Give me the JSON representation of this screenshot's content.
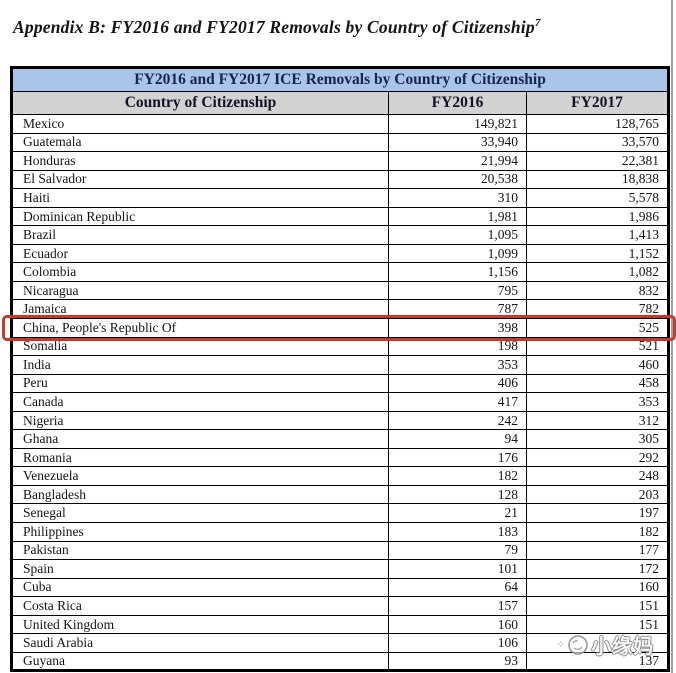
{
  "page": {
    "title": "Appendix B: FY2016 and FY2017 Removals by Country of Citizenship",
    "title_footnote": "7"
  },
  "table": {
    "caption": "FY2016 and FY2017 ICE Removals by Country of Citizenship",
    "columns": [
      "Country of Citizenship",
      "FY2016",
      "FY2017"
    ],
    "caption_bg": "#a9c6e8",
    "header_bg": "#d2d2d2",
    "rows": [
      {
        "country": "Mexico",
        "fy2016": "149,821",
        "fy2017": "128,765"
      },
      {
        "country": "Guatemala",
        "fy2016": "33,940",
        "fy2017": "33,570"
      },
      {
        "country": "Honduras",
        "fy2016": "21,994",
        "fy2017": "22,381"
      },
      {
        "country": "El Salvador",
        "fy2016": "20,538",
        "fy2017": "18,838"
      },
      {
        "country": "Haiti",
        "fy2016": "310",
        "fy2017": "5,578"
      },
      {
        "country": "Dominican Republic",
        "fy2016": "1,981",
        "fy2017": "1,986"
      },
      {
        "country": "Brazil",
        "fy2016": "1,095",
        "fy2017": "1,413"
      },
      {
        "country": "Ecuador",
        "fy2016": "1,099",
        "fy2017": "1,152"
      },
      {
        "country": "Colombia",
        "fy2016": "1,156",
        "fy2017": "1,082"
      },
      {
        "country": "Nicaragua",
        "fy2016": "795",
        "fy2017": "832"
      },
      {
        "country": "Jamaica",
        "fy2016": "787",
        "fy2017": "782"
      },
      {
        "country": "China, People's Republic Of",
        "fy2016": "398",
        "fy2017": "525"
      },
      {
        "country": "Somalia",
        "fy2016": "198",
        "fy2017": "521"
      },
      {
        "country": "India",
        "fy2016": "353",
        "fy2017": "460"
      },
      {
        "country": "Peru",
        "fy2016": "406",
        "fy2017": "458"
      },
      {
        "country": "Canada",
        "fy2016": "417",
        "fy2017": "353"
      },
      {
        "country": "Nigeria",
        "fy2016": "242",
        "fy2017": "312"
      },
      {
        "country": "Ghana",
        "fy2016": "94",
        "fy2017": "305"
      },
      {
        "country": "Romania",
        "fy2016": "176",
        "fy2017": "292"
      },
      {
        "country": "Venezuela",
        "fy2016": "182",
        "fy2017": "248"
      },
      {
        "country": "Bangladesh",
        "fy2016": "128",
        "fy2017": "203"
      },
      {
        "country": "Senegal",
        "fy2016": "21",
        "fy2017": "197"
      },
      {
        "country": "Philippines",
        "fy2016": "183",
        "fy2017": "182"
      },
      {
        "country": "Pakistan",
        "fy2016": "79",
        "fy2017": "177"
      },
      {
        "country": "Spain",
        "fy2016": "101",
        "fy2017": "172"
      },
      {
        "country": "Cuba",
        "fy2016": "64",
        "fy2017": "160"
      },
      {
        "country": "Costa Rica",
        "fy2016": "157",
        "fy2017": "151"
      },
      {
        "country": "United Kingdom",
        "fy2016": "160",
        "fy2017": "151"
      },
      {
        "country": "Saudi Arabia",
        "fy2016": "106",
        "fy2017": ""
      },
      {
        "country": "Guyana",
        "fy2016": "93",
        "fy2017": "137"
      }
    ],
    "highlight": {
      "row_index": 11,
      "row_label": "China, People's Republic Of",
      "color": "#c23a2b"
    }
  },
  "watermark": {
    "sparkle": "✧",
    "text": "小缘妈"
  }
}
